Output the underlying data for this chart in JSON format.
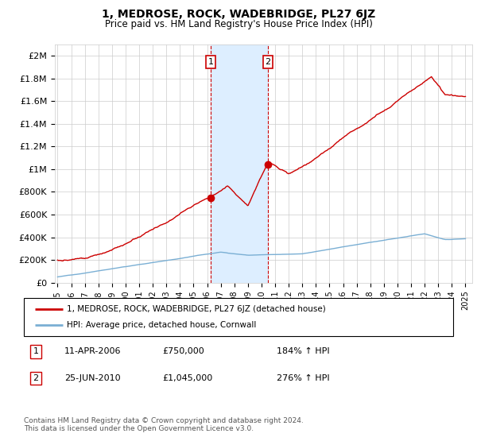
{
  "title": "1, MEDROSE, ROCK, WADEBRIDGE, PL27 6JZ",
  "subtitle": "Price paid vs. HM Land Registry's House Price Index (HPI)",
  "title_fontsize": 10,
  "subtitle_fontsize": 8.5,
  "ylabel_ticks": [
    "£0",
    "£200K",
    "£400K",
    "£600K",
    "£800K",
    "£1M",
    "£1.2M",
    "£1.4M",
    "£1.6M",
    "£1.8M",
    "£2M"
  ],
  "ytick_values": [
    0,
    200000,
    400000,
    600000,
    800000,
    1000000,
    1200000,
    1400000,
    1600000,
    1800000,
    2000000
  ],
  "ylim": [
    0,
    2100000
  ],
  "xlim_start": 1994.8,
  "xlim_end": 2025.5,
  "sale1_x": 2006.27,
  "sale1_y": 750000,
  "sale2_x": 2010.48,
  "sale2_y": 1045000,
  "sale1_label": "1",
  "sale2_label": "2",
  "shade_x1": 2006.27,
  "shade_x2": 2010.48,
  "shade_color": "#ddeeff",
  "dashed_color": "#cc0000",
  "bg_color": "#ffffff",
  "grid_color": "#cccccc",
  "red_line_color": "#cc0000",
  "blue_line_color": "#7aafd4",
  "legend1_label": "1, MEDROSE, ROCK, WADEBRIDGE, PL27 6JZ (detached house)",
  "legend2_label": "HPI: Average price, detached house, Cornwall",
  "annotation_box1": [
    "1",
    "11-APR-2006",
    "£750,000",
    "184% ↑ HPI"
  ],
  "annotation_box2": [
    "2",
    "25-JUN-2010",
    "£1,045,000",
    "276% ↑ HPI"
  ],
  "footer": "Contains HM Land Registry data © Crown copyright and database right 2024.\nThis data is licensed under the Open Government Licence v3.0.",
  "xtick_years": [
    1995,
    1996,
    1997,
    1998,
    1999,
    2000,
    2001,
    2002,
    2003,
    2004,
    2005,
    2006,
    2007,
    2008,
    2009,
    2010,
    2011,
    2012,
    2013,
    2014,
    2015,
    2016,
    2017,
    2018,
    2019,
    2020,
    2021,
    2022,
    2023,
    2024,
    2025
  ]
}
